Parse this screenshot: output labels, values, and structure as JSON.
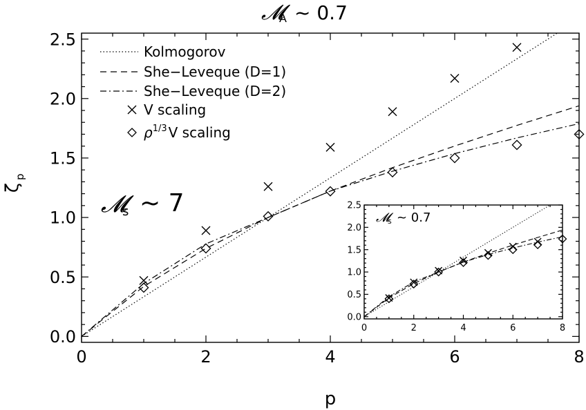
{
  "chart_data": [
    {
      "type": "line",
      "title": "",
      "annotations": [
        "𝓜",
        "A",
        "~ 0.7",
        "𝓜",
        "s",
        "~ 7"
      ],
      "xlabel": "p",
      "ylabel": "ζ",
      "ylabel_sub": "p",
      "xlim": [
        0,
        8
      ],
      "ylim": [
        -0.05,
        2.55
      ],
      "xticks": [
        "0",
        "2",
        "4",
        "6",
        "8"
      ],
      "yticks": [
        "0.0",
        "0.5",
        "1.0",
        "1.5",
        "2.0",
        "2.5"
      ],
      "grid": false,
      "legend_position": "top-left",
      "series": [
        {
          "name": "Kolmogorov",
          "style": "dotted",
          "x": [
            0,
            8
          ],
          "y": [
            0,
            2.667
          ]
        },
        {
          "name": "She−Leveque (D=1)",
          "style": "dashed",
          "x": [
            0,
            1,
            2,
            3,
            4,
            5,
            6,
            7,
            8
          ],
          "y": [
            0,
            0.42,
            0.74,
            1.0,
            1.222,
            1.419,
            1.601,
            1.774,
            1.939
          ]
        },
        {
          "name": "She−Leveque (D=2)",
          "style": "dashdot",
          "x": [
            0,
            1,
            2,
            3,
            4,
            5,
            6,
            7,
            8
          ],
          "y": [
            0,
            0.445,
            0.778,
            1.0,
            1.222,
            1.389,
            1.537,
            1.669,
            1.789
          ]
        },
        {
          "name": "V scaling",
          "marker": "x",
          "x": [
            1,
            2,
            3,
            4,
            5,
            6,
            7
          ],
          "y": [
            0.47,
            0.89,
            1.26,
            1.59,
            1.89,
            2.17,
            2.43
          ]
        },
        {
          "name": "ρ1/3V scaling",
          "marker": "diamond",
          "x": [
            1,
            2,
            3,
            4,
            5,
            6,
            7,
            8
          ],
          "y": [
            0.41,
            0.74,
            1.01,
            1.22,
            1.38,
            1.5,
            1.61,
            1.7
          ]
        }
      ]
    },
    {
      "type": "line",
      "title": "",
      "annotations": [
        "𝓜",
        "s",
        "~ 0.7"
      ],
      "xlim": [
        0,
        8
      ],
      "ylim": [
        -0.05,
        2.5
      ],
      "xticks": [
        "0",
        "2",
        "4",
        "6",
        "8"
      ],
      "yticks": [
        "0.0",
        "0.5",
        "1.0",
        "1.5",
        "2.0",
        "2.5"
      ],
      "series": [
        {
          "style": "dotted",
          "x": [
            0,
            8
          ],
          "y": [
            0,
            2.667
          ]
        },
        {
          "style": "dashed",
          "x": [
            0,
            1,
            2,
            3,
            4,
            5,
            6,
            7,
            8
          ],
          "y": [
            0,
            0.42,
            0.74,
            1.0,
            1.222,
            1.419,
            1.601,
            1.774,
            1.939
          ]
        },
        {
          "style": "dashdot",
          "x": [
            0,
            1,
            2,
            3,
            4,
            5,
            6,
            7,
            8
          ],
          "y": [
            0,
            0.445,
            0.778,
            1.0,
            1.222,
            1.389,
            1.537,
            1.669,
            1.789
          ]
        },
        {
          "marker": "x",
          "x": [
            1,
            2,
            3,
            4,
            5,
            6,
            7
          ],
          "y": [
            0.42,
            0.77,
            1.03,
            1.26,
            1.43,
            1.57,
            1.68
          ]
        },
        {
          "marker": "diamond",
          "x": [
            1,
            2,
            3,
            4,
            5,
            6,
            7,
            8
          ],
          "y": [
            0.4,
            0.73,
            1.0,
            1.21,
            1.37,
            1.5,
            1.61,
            1.74
          ]
        }
      ]
    }
  ],
  "legend": {
    "kolmogorov": "Kolmogorov",
    "sl1": "She−Leveque (D=1)",
    "sl2": "She−Leveque (D=2)",
    "v": "V scaling",
    "rho_base": "ρ",
    "rho_sup": "1/3",
    "rho_rest": "V scaling"
  }
}
